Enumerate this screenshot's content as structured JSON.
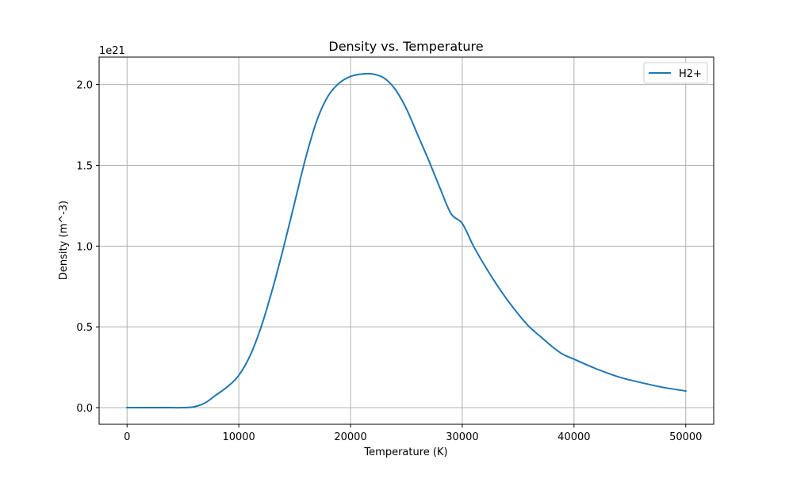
{
  "chart_data": {
    "type": "line",
    "title": "Density vs. Temperature",
    "xlabel": "Temperature (K)",
    "ylabel": "Density (m^-3)",
    "y_offset_label": "1e21",
    "xlim": [
      -2500,
      52500
    ],
    "ylim": [
      -0.103,
      2.17
    ],
    "x_ticks": [
      0,
      10000,
      20000,
      30000,
      40000,
      50000
    ],
    "x_tick_labels": [
      "0",
      "10000",
      "20000",
      "30000",
      "40000",
      "50000"
    ],
    "y_ticks": [
      0.0,
      0.5,
      1.0,
      1.5,
      2.0
    ],
    "y_tick_labels": [
      "0.0",
      "0.5",
      "1.0",
      "1.5",
      "2.0"
    ],
    "grid": true,
    "legend_position": "top-right",
    "series": [
      {
        "name": "H2+",
        "color": "#1f77b4",
        "x": [
          0,
          2000,
          4000,
          5000,
          6000,
          7000,
          8000,
          9000,
          10000,
          11000,
          12000,
          13000,
          14000,
          15000,
          16000,
          17000,
          18000,
          19000,
          20000,
          21000,
          22000,
          23000,
          24000,
          25000,
          26000,
          27000,
          28000,
          29000,
          30000,
          31000,
          32000,
          33000,
          34000,
          35000,
          36000,
          37000,
          38000,
          39000,
          40000,
          42000,
          44000,
          46000,
          48000,
          50000
        ],
        "y": [
          0.0,
          0.0,
          0.0,
          0.0,
          0.005,
          0.03,
          0.08,
          0.13,
          0.2,
          0.32,
          0.5,
          0.73,
          0.99,
          1.27,
          1.55,
          1.78,
          1.93,
          2.01,
          2.05,
          2.065,
          2.065,
          2.04,
          1.97,
          1.85,
          1.69,
          1.53,
          1.36,
          1.2,
          1.14,
          1.0,
          0.88,
          0.77,
          0.67,
          0.58,
          0.5,
          0.44,
          0.38,
          0.33,
          0.3,
          0.24,
          0.19,
          0.155,
          0.125,
          0.103
        ]
      }
    ]
  }
}
